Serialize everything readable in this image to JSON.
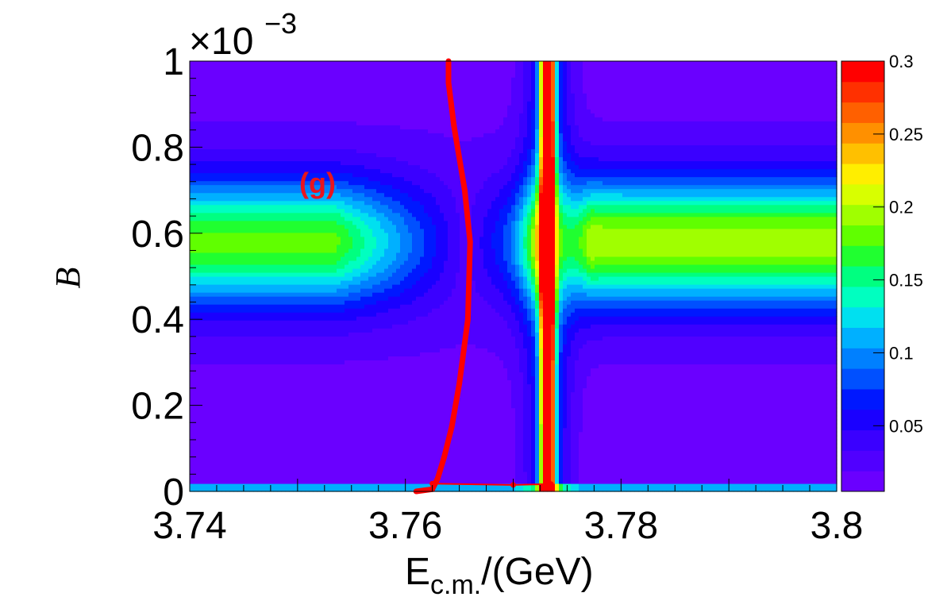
{
  "chart_data": {
    "type": "heatmap",
    "panel_label": "(g)",
    "xlabel_main": "E",
    "xlabel_sub": "c.m.",
    "xlabel_tail": "/(GeV)",
    "ylabel": "B",
    "y_exponent_base": "×10",
    "y_exponent_power": "−3",
    "xlim": [
      3.74,
      3.8
    ],
    "ylim": [
      0,
      1
    ],
    "x_ticks": [
      3.74,
      3.76,
      3.78,
      3.8
    ],
    "x_tick_labels": [
      "3.74",
      "3.76",
      "3.78",
      "3.8"
    ],
    "y_ticks": [
      0,
      0.2,
      0.4,
      0.6,
      0.8,
      1.0
    ],
    "y_tick_labels": [
      "0",
      "0.2",
      "0.4",
      "0.6",
      "0.8",
      "1"
    ],
    "z_range": [
      0.005,
      0.3
    ],
    "colorbar_ticks": [
      0.05,
      0.1,
      0.15,
      0.2,
      0.25,
      0.3
    ],
    "colorbar_tick_labels": [
      "0.05",
      "0.1",
      "0.15",
      "0.2",
      "0.25",
      "0.3"
    ],
    "resonance_center_gev": 3.7732,
    "min_curve": [
      {
        "x": 3.761,
        "y": 0.0
      },
      {
        "x": 3.7625,
        "y": 0.005
      },
      {
        "x": 3.763,
        "y": 0.03
      },
      {
        "x": 3.7636,
        "y": 0.08
      },
      {
        "x": 3.7643,
        "y": 0.15
      },
      {
        "x": 3.765,
        "y": 0.25
      },
      {
        "x": 3.7658,
        "y": 0.4
      },
      {
        "x": 3.766,
        "y": 0.58
      },
      {
        "x": 3.7655,
        "y": 0.7
      },
      {
        "x": 3.7645,
        "y": 0.85
      },
      {
        "x": 3.764,
        "y": 0.95
      },
      {
        "x": 3.764,
        "y": 1.0
      }
    ],
    "min_curve_low_branch": [
      {
        "x": 3.7625,
        "y": 0.018
      },
      {
        "x": 3.77,
        "y": 0.015
      },
      {
        "x": 3.7735,
        "y": 0.017
      }
    ],
    "colors": {
      "curve": "#ff0000",
      "panel_label": "#e8141e"
    }
  }
}
